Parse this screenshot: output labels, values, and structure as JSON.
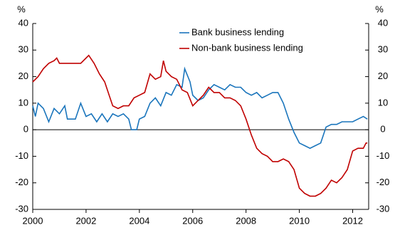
{
  "chart_data": {
    "type": "line",
    "y_unit": "%",
    "y2_unit": "%",
    "xlim": [
      2000,
      2012.6
    ],
    "xticks": [
      2000,
      2002,
      2004,
      2006,
      2008,
      2010,
      2012
    ],
    "ylim": [
      -30,
      40
    ],
    "yticks": [
      -30,
      -20,
      -10,
      0,
      10,
      20,
      30,
      40
    ],
    "y2lim": [
      -30,
      40
    ],
    "y2ticks": [
      -30,
      -20,
      -10,
      0,
      10,
      20,
      30,
      40
    ],
    "grid": false,
    "legend": "top",
    "series": [
      {
        "name": "Bank business lending",
        "color": "#1a75bc",
        "x": [
          2000.0,
          2000.1,
          2000.2,
          2000.4,
          2000.6,
          2000.8,
          2001.0,
          2001.2,
          2001.3,
          2001.6,
          2001.8,
          2002.0,
          2002.2,
          2002.4,
          2002.6,
          2002.8,
          2003.0,
          2003.2,
          2003.4,
          2003.6,
          2003.7,
          2003.9,
          2004.0,
          2004.2,
          2004.4,
          2004.6,
          2004.8,
          2005.0,
          2005.2,
          2005.4,
          2005.6,
          2005.7,
          2005.9,
          2006.0,
          2006.2,
          2006.4,
          2006.6,
          2006.8,
          2007.0,
          2007.2,
          2007.4,
          2007.6,
          2007.8,
          2008.0,
          2008.2,
          2008.4,
          2008.6,
          2008.8,
          2009.0,
          2009.2,
          2009.4,
          2009.6,
          2009.8,
          2010.0,
          2010.2,
          2010.4,
          2010.6,
          2010.8,
          2011.0,
          2011.2,
          2011.4,
          2011.6,
          2011.8,
          2012.0,
          2012.2,
          2012.4,
          2012.55
        ],
        "values": [
          9,
          5,
          10,
          8,
          3,
          8,
          6,
          9,
          4,
          4,
          10,
          5,
          6,
          3,
          6,
          3,
          6,
          5,
          6,
          4,
          0,
          0,
          4,
          5,
          10,
          12,
          9,
          14,
          13,
          17,
          16,
          23,
          18,
          13,
          11,
          12,
          15,
          17,
          16,
          15,
          17,
          16,
          16,
          14,
          13,
          14,
          12,
          13,
          14,
          14,
          10,
          4,
          -1,
          -5,
          -6,
          -7,
          -6,
          -5,
          1,
          2,
          2,
          3,
          3,
          3,
          4,
          5,
          4
        ]
      },
      {
        "name": "Non-bank business lending",
        "color": "#c00000",
        "x": [
          2000.0,
          2000.2,
          2000.4,
          2000.6,
          2000.8,
          2000.9,
          2001.0,
          2001.3,
          2001.6,
          2001.8,
          2002.0,
          2002.1,
          2002.3,
          2002.5,
          2002.7,
          2002.9,
          2003.0,
          2003.2,
          2003.4,
          2003.6,
          2003.8,
          2004.0,
          2004.2,
          2004.4,
          2004.6,
          2004.8,
          2004.9,
          2005.0,
          2005.2,
          2005.4,
          2005.6,
          2005.8,
          2006.0,
          2006.2,
          2006.4,
          2006.6,
          2006.8,
          2007.0,
          2007.2,
          2007.4,
          2007.6,
          2007.8,
          2008.0,
          2008.2,
          2008.4,
          2008.6,
          2008.8,
          2009.0,
          2009.2,
          2009.4,
          2009.6,
          2009.8,
          2010.0,
          2010.2,
          2010.4,
          2010.6,
          2010.8,
          2011.0,
          2011.2,
          2011.4,
          2011.6,
          2011.8,
          2012.0,
          2012.2,
          2012.4,
          2012.5,
          2012.55
        ],
        "values": [
          18,
          20,
          23,
          25,
          26,
          27,
          25,
          25,
          25,
          25,
          27,
          28,
          25,
          21,
          18,
          12,
          9,
          8,
          9,
          9,
          12,
          13,
          14,
          21,
          19,
          20,
          26,
          22,
          20,
          19,
          15,
          14,
          9,
          11,
          13,
          16,
          14,
          14,
          12,
          12,
          11,
          9,
          4,
          -2,
          -7,
          -9,
          -10,
          -12,
          -12,
          -11,
          -12,
          -15,
          -22,
          -24,
          -25,
          -25,
          -24,
          -22,
          -19,
          -20,
          -18,
          -15,
          -8,
          -7,
          -7,
          -5,
          -5
        ]
      }
    ]
  }
}
